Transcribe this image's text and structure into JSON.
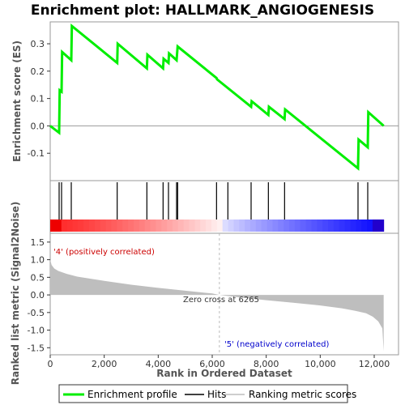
{
  "chart_data": {
    "type": "line",
    "title": "Enrichment plot: HALLMARK_ANGIOGENESIS",
    "top_panel": {
      "ylabel": "Enrichment score (ES)",
      "ylim": [
        -0.2,
        0.38
      ],
      "yticks": [
        "-0.1",
        "0.0",
        "0.1",
        "0.2",
        "0.3"
      ],
      "ytick_values": [
        -0.1,
        0.0,
        0.1,
        0.2,
        0.3
      ],
      "series": [
        {
          "name": "Enrichment profile",
          "color": "#00ee00",
          "x": [
            0,
            330,
            350,
            420,
            440,
            780,
            800,
            2480,
            2500,
            3580,
            3600,
            4180,
            4200,
            4380,
            4400,
            4680,
            4720,
            6160,
            6180,
            7440,
            7460,
            8080,
            8100,
            8680,
            8700,
            11400,
            11420,
            11760,
            11780,
            12350
          ],
          "y": [
            0.0,
            -0.025,
            0.13,
            0.125,
            0.27,
            0.24,
            0.365,
            0.23,
            0.3,
            0.21,
            0.26,
            0.21,
            0.245,
            0.23,
            0.265,
            0.24,
            0.29,
            0.175,
            0.17,
            0.07,
            0.09,
            0.04,
            0.07,
            0.025,
            0.06,
            -0.155,
            -0.05,
            -0.078,
            0.05,
            0.0
          ]
        }
      ]
    },
    "hits": {
      "name": "Hits",
      "positions": [
        330,
        420,
        780,
        2480,
        3580,
        4180,
        4380,
        4680,
        4720,
        6160,
        6580,
        7440,
        8080,
        8680,
        11400,
        11760
      ]
    },
    "bottom_panel": {
      "ylabel": "Ranked list metric (Signal2Noise)",
      "xlabel": "Rank in Ordered Dataset",
      "ylim": [
        -1.7,
        1.75
      ],
      "yticks": [
        "-1.5",
        "-1.0",
        "-0.5",
        "0.0",
        "0.5",
        "1.0",
        "1.5"
      ],
      "ytick_values": [
        -1.5,
        -1.0,
        -0.5,
        0.0,
        0.5,
        1.0,
        1.5
      ],
      "xticks": [
        "0",
        "2,000",
        "4,000",
        "6,000",
        "8,000",
        "10,000",
        "12,000"
      ],
      "xtick_values": [
        0,
        2000,
        4000,
        6000,
        8000,
        10000,
        12000
      ],
      "xlim": [
        0,
        12900
      ],
      "metric_profile": {
        "name": "Ranking metric scores",
        "color": "#bebebe",
        "x": [
          0,
          50,
          150,
          300,
          600,
          1000,
          2000,
          3000,
          4000,
          5000,
          6000,
          6265,
          7000,
          8000,
          9000,
          10000,
          10800,
          11300,
          11700,
          11950,
          12150,
          12300,
          12350
        ],
        "y": [
          1.0,
          0.85,
          0.75,
          0.68,
          0.6,
          0.52,
          0.4,
          0.29,
          0.2,
          0.12,
          0.04,
          0.0,
          -0.07,
          -0.15,
          -0.22,
          -0.3,
          -0.38,
          -0.45,
          -0.52,
          -0.62,
          -0.75,
          -0.95,
          -1.6
        ]
      },
      "pos_label": "'4' (positively correlated)",
      "neg_label": "'5' (negatively correlated)",
      "zero_cross_label": "Zero cross at 6265",
      "zero_cross": 6265,
      "pos_color": "#cc0000",
      "neg_color": "#0000cc"
    },
    "legend": [
      {
        "label": "Enrichment profile",
        "color": "#00ee00"
      },
      {
        "label": "Hits",
        "color": "#000000"
      },
      {
        "label": "Ranking metric scores",
        "color": "#bebebe"
      }
    ],
    "legend_position": "bottom"
  }
}
